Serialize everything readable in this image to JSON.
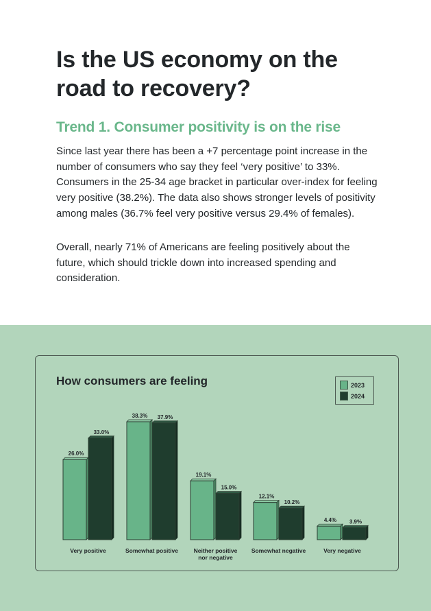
{
  "page": {
    "title": "Is the US economy on the road to recovery?",
    "trend_heading": "Trend 1. Consumer positivity is on the rise",
    "paragraphs": [
      "Since last year there has been a +7 percentage point increase in the number of consumers who say they feel ‘very positive’ to 33%. Consumers in the 25-34 age bracket in particular over-index for feeling very positive (38.2%). The data also shows stronger levels of positivity among males (36.7% feel very positive versus 29.4% of females).",
      "Overall, nearly 71% of Americans are feeling positively about the future, which should trickle down into increased spending and consideration."
    ]
  },
  "colors": {
    "accent_green": "#6ab78b",
    "section_bg": "#b2d5bb",
    "series_2023": "#68b489",
    "series_2024": "#1f3d2e",
    "text_dark": "#23272a"
  },
  "chart_data": {
    "type": "bar",
    "title": "How consumers are feeling",
    "xlabel": "",
    "ylabel": "",
    "ylim": [
      0,
      40
    ],
    "grid": false,
    "legend_position": "top-right",
    "categories": [
      [
        "Very positive"
      ],
      [
        "Somewhat positive"
      ],
      [
        "Neither positive",
        "nor negative"
      ],
      [
        "Somewhat negative"
      ],
      [
        "Very negative"
      ]
    ],
    "series": [
      {
        "name": "2023",
        "color": "#68b489",
        "values": [
          26.0,
          38.3,
          19.1,
          12.1,
          4.4
        ],
        "labels": [
          "26.0%",
          "38.3%",
          "19.1%",
          "12.1%",
          "4.4%"
        ]
      },
      {
        "name": "2024",
        "color": "#1f3d2e",
        "values": [
          33.0,
          37.9,
          15.0,
          10.2,
          3.9
        ],
        "labels": [
          "33.0%",
          "37.9%",
          "15.0%",
          "10.2%",
          "3.9%"
        ]
      }
    ]
  }
}
